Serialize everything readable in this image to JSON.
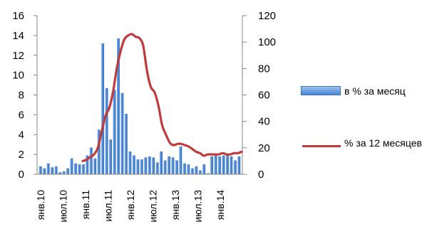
{
  "chart_data": {
    "type": "bar+line",
    "x_labels": [
      "янв.10",
      "июл.10",
      "янв.11",
      "июл.11",
      "янв.12",
      "июл.12",
      "янв.13",
      "июл.13",
      "янв.14"
    ],
    "left_axis": {
      "ticks": [
        "0",
        "2",
        "4",
        "6",
        "8",
        "10",
        "12",
        "14",
        "16"
      ],
      "ylim": [
        0,
        16
      ]
    },
    "right_axis": {
      "ticks": [
        "0",
        "20",
        "40",
        "60",
        "80",
        "100",
        "120"
      ],
      "ylim": [
        0,
        120
      ]
    },
    "series": [
      {
        "name": "в % за месяц",
        "type": "bar",
        "axis": "left",
        "color": "#4a86d4",
        "values": [
          0.8,
          0.6,
          1.1,
          0.7,
          0.8,
          0.2,
          0.3,
          0.6,
          1.6,
          1.1,
          1.0,
          1.0,
          1.9,
          2.7,
          1.6,
          4.5,
          13.2,
          8.7,
          3.5,
          8.5,
          13.7,
          8.2,
          6.1,
          2.3,
          1.9,
          1.5,
          1.5,
          1.7,
          1.8,
          1.7,
          1.2,
          2.3,
          1.4,
          1.8,
          1.7,
          1.4,
          2.8,
          1.1,
          1.0,
          0.6,
          0.8,
          0.4,
          1.0,
          0.1,
          1.8,
          1.9,
          1.8,
          1.9,
          1.9,
          1.8,
          1.4,
          1.8
        ]
      },
      {
        "name": "% за 12 месяцев",
        "type": "line",
        "axis": "right",
        "color": "#c0393b",
        "values": [
          10,
          11,
          13,
          15,
          20,
          32,
          44,
          50,
          62,
          80,
          93,
          102,
          105,
          106,
          104,
          103,
          97,
          78,
          66,
          62,
          52,
          37,
          30,
          24,
          22,
          23,
          23,
          22,
          21,
          19,
          17,
          16,
          14,
          15,
          15,
          15,
          15,
          16,
          15,
          15,
          16,
          16,
          17
        ]
      }
    ]
  }
}
